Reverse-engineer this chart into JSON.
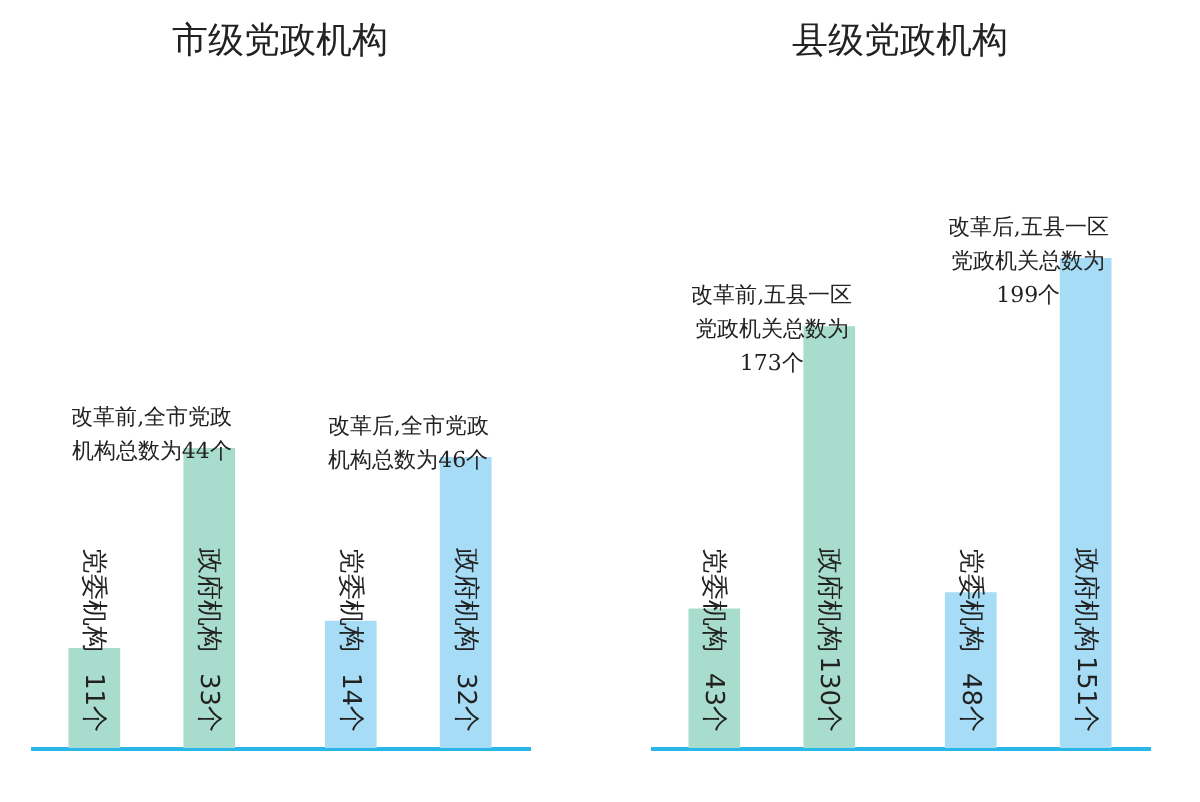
{
  "chart_data": [
    {
      "type": "bar",
      "title": "市级党政机构",
      "categories": [
        "党委机构",
        "政府机构",
        "党委机构",
        "政府机构"
      ],
      "values": [
        11,
        33,
        14,
        32
      ],
      "colors": [
        "#a8dccc",
        "#a8dccc",
        "#a6dcf5",
        "#a6dcf5"
      ],
      "value_labels": [
        "11个",
        "33个",
        "14个",
        "32个"
      ],
      "annotations": [
        "改革前,全市党政机构总数为44个",
        "改革后,全市党政机构总数为46个"
      ]
    },
    {
      "type": "bar",
      "title": "县级党政机构",
      "categories": [
        "党委机构",
        "政府机构",
        "党委机构",
        "政府机构"
      ],
      "values": [
        43,
        130,
        48,
        151
      ],
      "colors": [
        "#a8dccc",
        "#a8dccc",
        "#a6dcf5",
        "#a6dcf5"
      ],
      "value_labels": [
        "43个",
        "130个",
        "48个",
        "151个"
      ],
      "annotations": [
        "改革前,五县一区党政机关总数为173个",
        "改革后,五县一区党政机关总数为199个"
      ]
    }
  ]
}
